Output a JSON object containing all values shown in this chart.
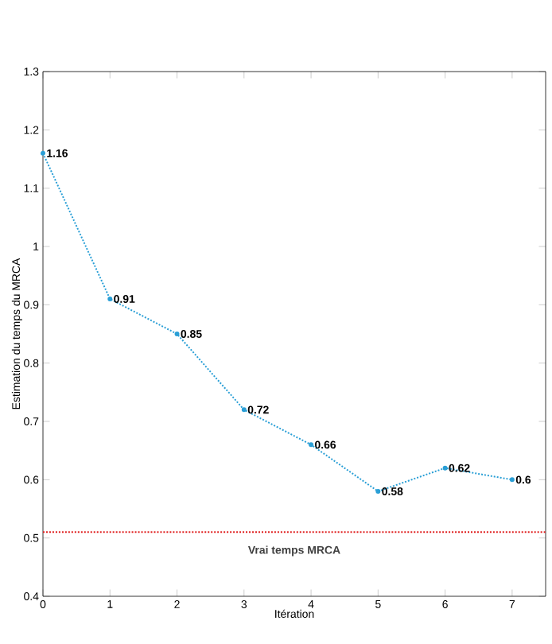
{
  "chart_data": {
    "type": "line",
    "xlabel": "Itération",
    "ylabel": "Estimation du temps du MRCA",
    "x": [
      0,
      1,
      2,
      3,
      4,
      5,
      6,
      7
    ],
    "series": [
      {
        "color": "#2a9fd6",
        "values": [
          1.16,
          0.91,
          0.85,
          0.72,
          0.66,
          0.58,
          0.62,
          0.6
        ]
      }
    ],
    "xlim": [
      0,
      7.5
    ],
    "ylim": [
      0.4,
      1.3
    ],
    "xticks": [
      0,
      1,
      2,
      3,
      4,
      5,
      6,
      7
    ],
    "yticks": [
      0.4,
      0.5,
      0.6,
      0.7,
      0.8,
      0.9,
      1,
      1.1,
      1.2,
      1.3
    ],
    "ref_lines": [
      {
        "axis": "y",
        "value": 0.51,
        "label": "Vrai temps MRCA",
        "color": "#e02020",
        "line_style": "dotted"
      }
    ],
    "data_labels": true,
    "marker": "circle",
    "line_style": "dotted",
    "grid": false
  }
}
